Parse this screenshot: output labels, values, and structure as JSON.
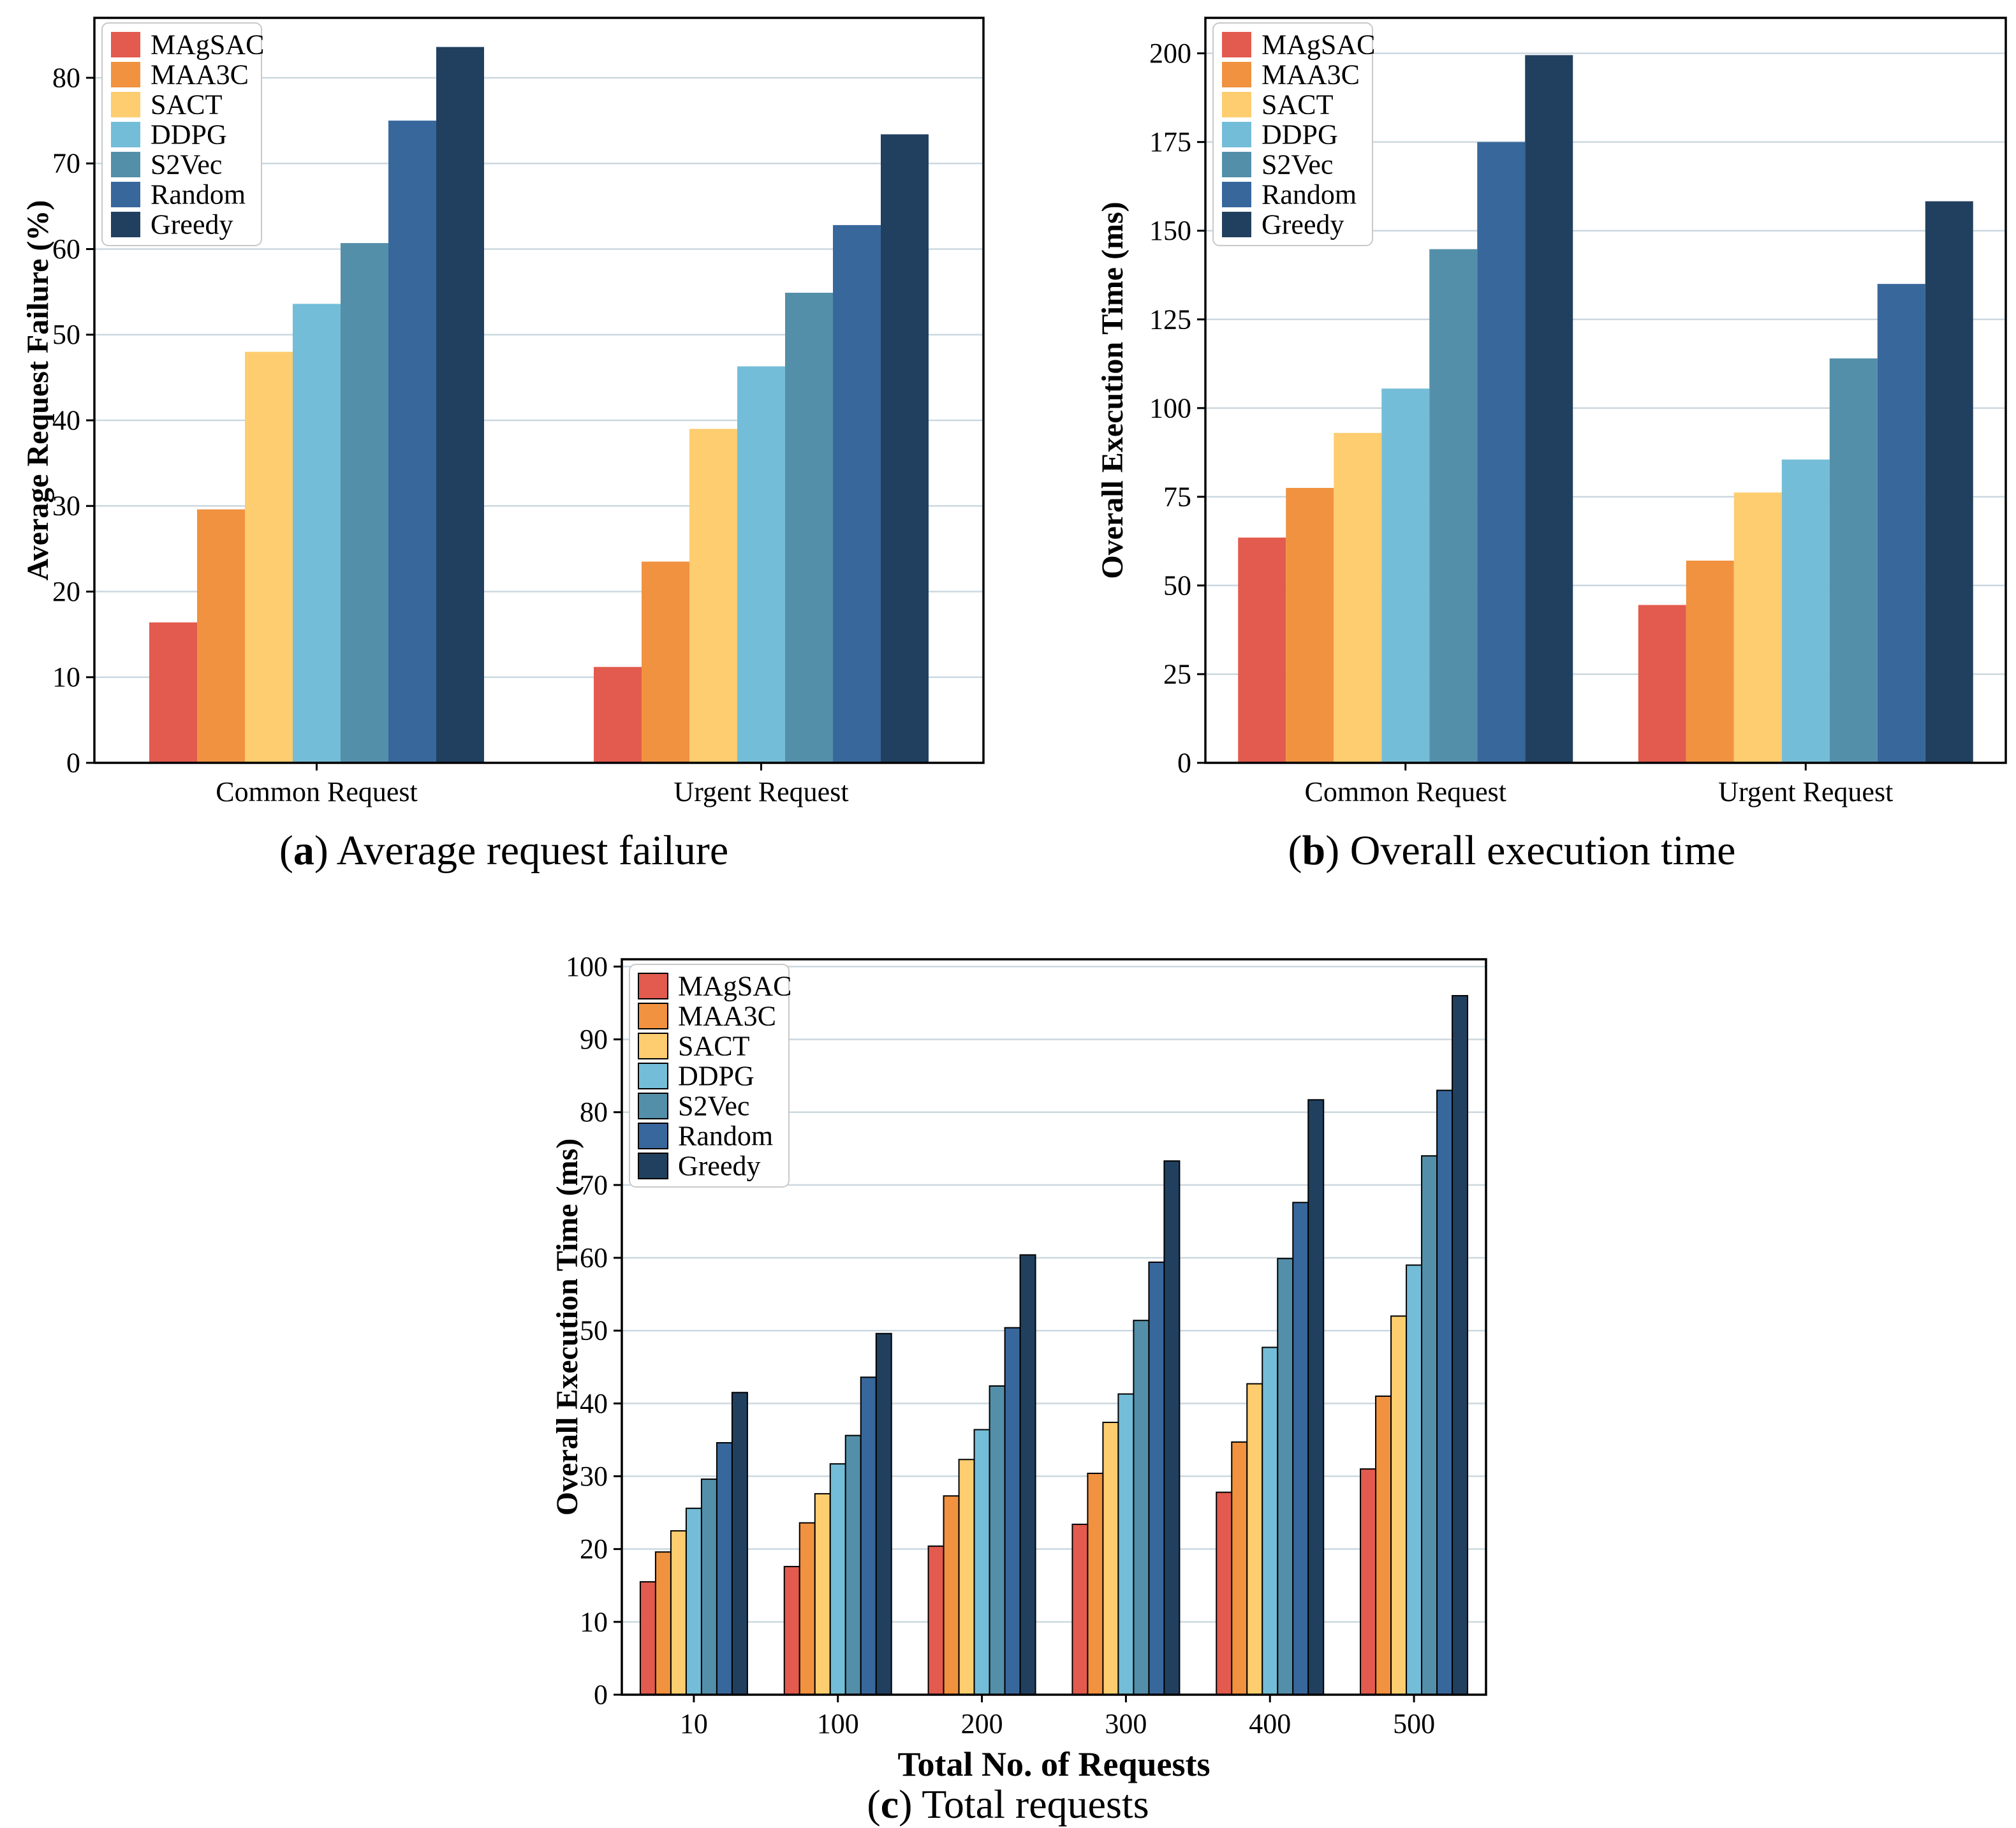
{
  "figure": {
    "background": "#ffffff",
    "grid_color": "#cbd8df",
    "axis_color": "#000000",
    "legend_border_color": "#c9c9c9",
    "series": [
      "MAgSAC",
      "MAA3C",
      "SACT",
      "DDPG",
      "S2Vec",
      "Random",
      "Greedy"
    ],
    "series_colors": [
      "#e25b4e",
      "#f0923f",
      "#fdcd70",
      "#74bdd8",
      "#548fa9",
      "#38679c",
      "#21405f"
    ]
  },
  "chart_data": [
    {
      "id": "a",
      "type": "bar",
      "title": "",
      "categories": [
        "Common Request",
        "Urgent Request"
      ],
      "series": [
        {
          "name": "MAgSAC",
          "values": [
            16.4,
            11.2
          ]
        },
        {
          "name": "MAA3C",
          "values": [
            29.6,
            23.5
          ]
        },
        {
          "name": "SACT",
          "values": [
            48.0,
            39.0
          ]
        },
        {
          "name": "DDPG",
          "values": [
            53.6,
            46.3
          ]
        },
        {
          "name": "S2Vec",
          "values": [
            60.7,
            54.9
          ]
        },
        {
          "name": "Random",
          "values": [
            75.0,
            62.8
          ]
        },
        {
          "name": "Greedy",
          "values": [
            83.6,
            73.4
          ]
        }
      ],
      "xlabel": "",
      "ylabel": "Average Request Failure (%)",
      "ylim": [
        0,
        87
      ],
      "yticks": [
        0,
        10,
        20,
        30,
        40,
        50,
        60,
        70,
        80
      ],
      "grid": "horizontal",
      "legend_position": "upper left",
      "caption": {
        "label": "a",
        "text": "Average request failure"
      }
    },
    {
      "id": "b",
      "type": "bar",
      "title": "",
      "categories": [
        "Common Request",
        "Urgent Request"
      ],
      "series": [
        {
          "name": "MAgSAC",
          "values": [
            63.5,
            44.5
          ]
        },
        {
          "name": "MAA3C",
          "values": [
            77.5,
            57.0
          ]
        },
        {
          "name": "SACT",
          "values": [
            93.0,
            76.2
          ]
        },
        {
          "name": "DDPG",
          "values": [
            105.5,
            85.5
          ]
        },
        {
          "name": "S2Vec",
          "values": [
            144.8,
            114.0
          ]
        },
        {
          "name": "Random",
          "values": [
            175.0,
            135.0
          ]
        },
        {
          "name": "Greedy",
          "values": [
            199.5,
            158.3
          ]
        }
      ],
      "xlabel": "",
      "ylabel": "Overall Execution Time (ms)",
      "ylim": [
        0,
        210
      ],
      "yticks": [
        0,
        25,
        50,
        75,
        100,
        125,
        150,
        175,
        200
      ],
      "grid": "horizontal",
      "legend_position": "upper left",
      "caption": {
        "label": "b",
        "text": "Overall execution time"
      }
    },
    {
      "id": "c",
      "type": "bar",
      "title": "",
      "categories": [
        "10",
        "100",
        "200",
        "300",
        "400",
        "500"
      ],
      "series": [
        {
          "name": "MAgSAC",
          "values": [
            15.5,
            17.6,
            20.4,
            23.4,
            27.8,
            31.0
          ]
        },
        {
          "name": "MAA3C",
          "values": [
            19.6,
            23.6,
            27.3,
            30.4,
            34.7,
            41.0
          ]
        },
        {
          "name": "SACT",
          "values": [
            22.5,
            27.6,
            32.3,
            37.4,
            42.7,
            52.0
          ]
        },
        {
          "name": "DDPG",
          "values": [
            25.6,
            31.7,
            36.4,
            41.3,
            47.7,
            59.0
          ]
        },
        {
          "name": "S2Vec",
          "values": [
            29.6,
            35.6,
            42.4,
            51.4,
            59.9,
            74.0
          ]
        },
        {
          "name": "Random",
          "values": [
            34.6,
            43.6,
            50.4,
            59.4,
            67.6,
            83.0
          ]
        },
        {
          "name": "Greedy",
          "values": [
            41.5,
            49.6,
            60.4,
            73.3,
            81.7,
            96.0
          ]
        }
      ],
      "xlabel": "Total No. of Requests",
      "ylabel": "Overall Execution Time (ms)",
      "ylim": [
        0,
        101
      ],
      "yticks": [
        0,
        10,
        20,
        30,
        40,
        50,
        60,
        70,
        80,
        90,
        100
      ],
      "grid": "horizontal",
      "legend_position": "upper left",
      "caption": {
        "label": "c",
        "text": "Total requests"
      }
    }
  ]
}
